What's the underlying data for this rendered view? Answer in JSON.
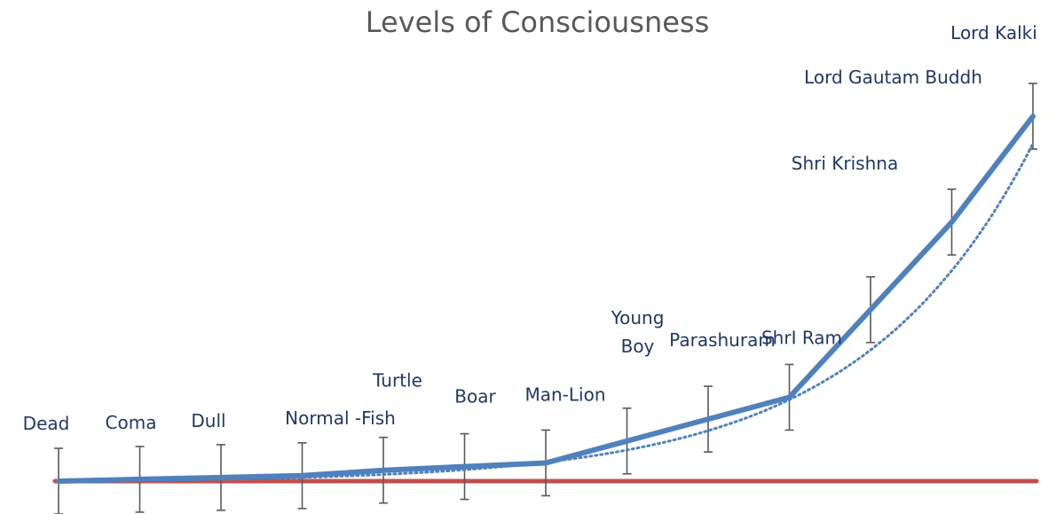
{
  "chart_data": {
    "type": "line",
    "title": "Levels of Consciousness",
    "xlabel": "",
    "ylabel": "",
    "grid": false,
    "legend": "none",
    "ylim": [
      0,
      100
    ],
    "points": [
      {
        "label": "Dead",
        "value": 0
      },
      {
        "label": "Coma",
        "value": 0.5
      },
      {
        "label": "Dull",
        "value": 1
      },
      {
        "label": "Normal -Fish",
        "value": 1.5
      },
      {
        "label": "Turtle",
        "value": 3
      },
      {
        "label": "Boar",
        "value": 4
      },
      {
        "label": "Man-Lion",
        "value": 5
      },
      {
        "label": "Young Boy",
        "value": 11
      },
      {
        "label": "Parashuram",
        "value": 17
      },
      {
        "label": "ShrI Ram",
        "value": 23
      },
      {
        "label": "Shri Krishna",
        "value": 47
      },
      {
        "label": "Lord Gautam Buddh",
        "value": 71
      },
      {
        "label": "Lord Kalki",
        "value": 100
      }
    ],
    "error_bar": 9,
    "baseline": 0,
    "trendline": "exponential",
    "colors": {
      "series": "#4f81bd",
      "baseline": "#c0504d",
      "error_bars": "#595959",
      "labels": "#1f3864"
    }
  }
}
